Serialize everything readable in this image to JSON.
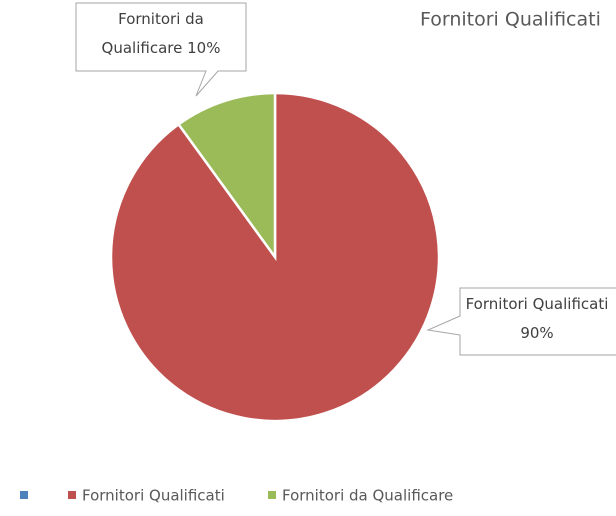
{
  "chart_data": {
    "type": "pie",
    "title": "Fornitori Qualificati",
    "categories": [
      null,
      "Fornitori Qualificati",
      "Fornitori da Qualificare"
    ],
    "values": [
      0,
      90,
      10
    ],
    "value_labels": [
      null,
      "Fornitori Qualificati 90%",
      "Fornitori da Qualificare 10%"
    ],
    "colors": [
      "#4f81bd",
      "#c0504d",
      "#9bbb59"
    ],
    "legend": "bottom"
  }
}
